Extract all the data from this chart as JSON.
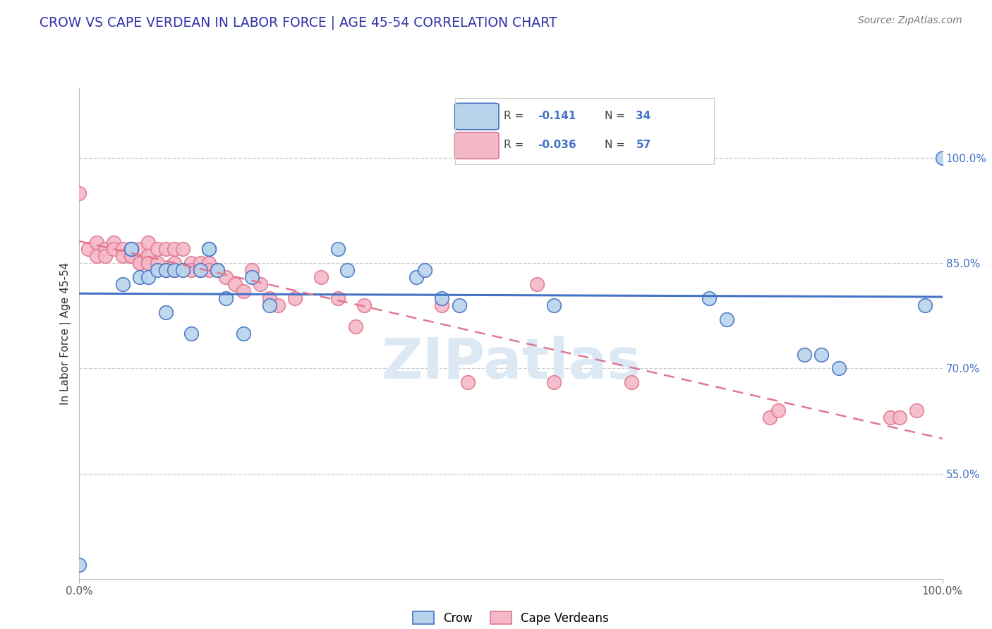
{
  "title": "CROW VS CAPE VERDEAN IN LABOR FORCE | AGE 45-54 CORRELATION CHART",
  "source_text": "Source: ZipAtlas.com",
  "ylabel": "In Labor Force | Age 45-54",
  "xlim": [
    0.0,
    1.0
  ],
  "ylim": [
    0.4,
    1.1
  ],
  "xtick_labels": [
    "0.0%",
    "100.0%"
  ],
  "xtick_positions": [
    0.0,
    1.0
  ],
  "ytick_labels": [
    "55.0%",
    "70.0%",
    "85.0%",
    "100.0%"
  ],
  "ytick_positions": [
    0.55,
    0.7,
    0.85,
    1.0
  ],
  "crow_R": "-0.141",
  "crow_N": "34",
  "cape_R": "-0.036",
  "cape_N": "57",
  "crow_color": "#b8d4ed",
  "cape_color": "#f5b8c8",
  "crow_edge_color": "#4472c4",
  "cape_edge_color": "#e07890",
  "crow_line_color": "#4472c4",
  "cape_line_color": "#e07890",
  "watermark": "ZIPatlas",
  "crow_scatter_x": [
    0.0,
    0.05,
    0.06,
    0.06,
    0.07,
    0.08,
    0.09,
    0.1,
    0.1,
    0.11,
    0.12,
    0.13,
    0.14,
    0.15,
    0.15,
    0.16,
    0.17,
    0.19,
    0.2,
    0.22,
    0.3,
    0.31,
    0.39,
    0.4,
    0.42,
    0.44,
    0.55,
    0.73,
    0.75,
    0.84,
    0.86,
    0.88,
    0.98,
    1.0
  ],
  "crow_scatter_y": [
    0.42,
    0.82,
    0.87,
    0.87,
    0.83,
    0.83,
    0.84,
    0.84,
    0.78,
    0.84,
    0.84,
    0.75,
    0.84,
    0.87,
    0.87,
    0.84,
    0.8,
    0.75,
    0.83,
    0.79,
    0.87,
    0.84,
    0.83,
    0.84,
    0.8,
    0.79,
    0.79,
    0.8,
    0.77,
    0.72,
    0.72,
    0.7,
    0.79,
    1.0
  ],
  "cape_scatter_x": [
    0.0,
    0.01,
    0.02,
    0.02,
    0.03,
    0.03,
    0.04,
    0.04,
    0.05,
    0.05,
    0.06,
    0.06,
    0.06,
    0.07,
    0.07,
    0.07,
    0.08,
    0.08,
    0.08,
    0.08,
    0.09,
    0.09,
    0.1,
    0.1,
    0.11,
    0.11,
    0.11,
    0.12,
    0.13,
    0.13,
    0.14,
    0.14,
    0.15,
    0.15,
    0.16,
    0.17,
    0.18,
    0.19,
    0.2,
    0.21,
    0.22,
    0.23,
    0.25,
    0.28,
    0.3,
    0.32,
    0.33,
    0.42,
    0.45,
    0.53,
    0.55,
    0.64,
    0.8,
    0.81,
    0.94,
    0.95,
    0.97
  ],
  "cape_scatter_y": [
    0.95,
    0.87,
    0.88,
    0.86,
    0.87,
    0.86,
    0.88,
    0.87,
    0.87,
    0.86,
    0.87,
    0.86,
    0.86,
    0.87,
    0.85,
    0.85,
    0.88,
    0.86,
    0.85,
    0.85,
    0.87,
    0.85,
    0.87,
    0.84,
    0.87,
    0.85,
    0.84,
    0.87,
    0.85,
    0.84,
    0.85,
    0.84,
    0.85,
    0.84,
    0.84,
    0.83,
    0.82,
    0.81,
    0.84,
    0.82,
    0.8,
    0.79,
    0.8,
    0.83,
    0.8,
    0.76,
    0.79,
    0.79,
    0.68,
    0.82,
    0.68,
    0.68,
    0.63,
    0.64,
    0.63,
    0.63,
    0.64
  ],
  "background_color": "#ffffff",
  "grid_color": "#cccccc"
}
